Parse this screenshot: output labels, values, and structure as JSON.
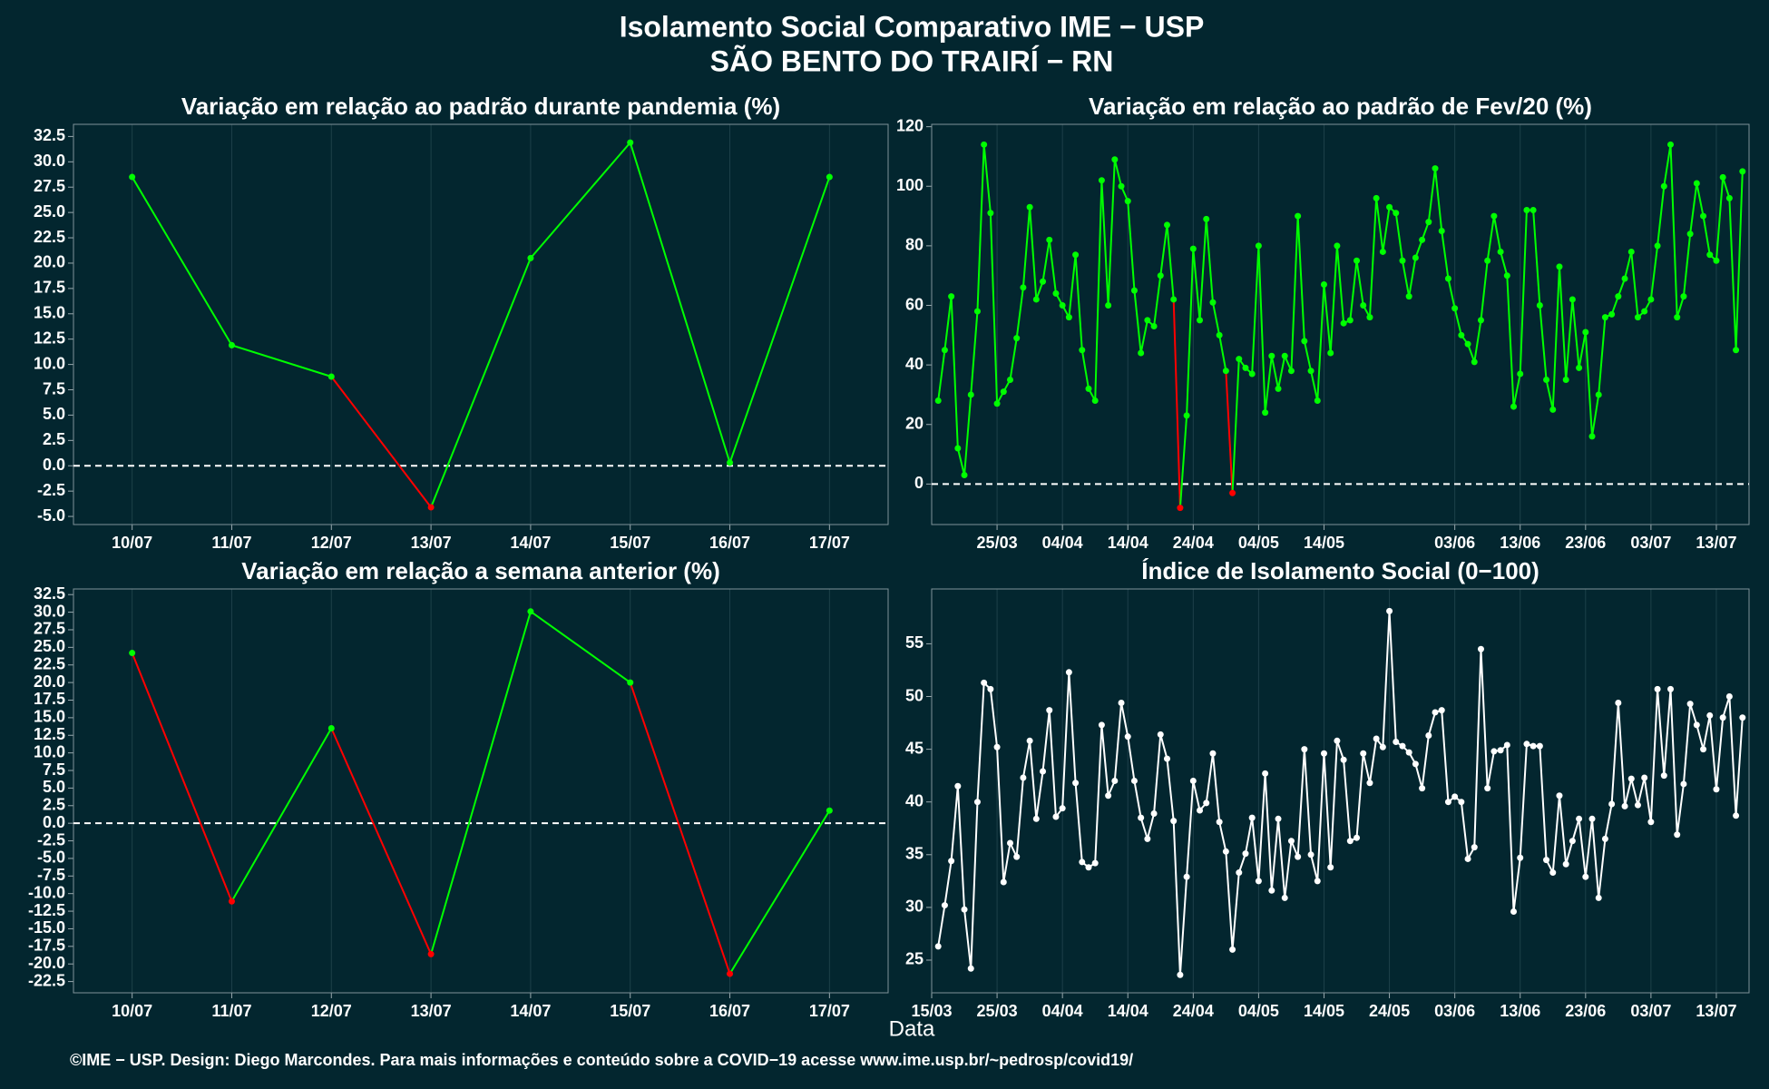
{
  "page": {
    "title": [
      "Isolamento Social Comparativo IME − USP",
      "SÃO BENTO DO TRAIRÍ − RN"
    ],
    "xlabel": "Data",
    "footer": "©IME − USP. Design: Diego Marcondes. Para mais informações e conteúdo sobre a COVID−19 acesse www.ime.usp.br/~pedrosp/covid19/"
  },
  "chart_data": [
    {
      "type": "line",
      "title": "Variação em relação ao padrão durante pandemia (%)",
      "categories": [
        "10/07",
        "11/07",
        "12/07",
        "13/07",
        "14/07",
        "15/07",
        "16/07",
        "17/07"
      ],
      "values": [
        28.5,
        11.9,
        8.8,
        -4.1,
        20.5,
        31.9,
        0.3,
        28.5
      ],
      "positive_color": "#00ff00",
      "negative_color": "#ff0000",
      "hline": 0,
      "ylim": [
        -5.8,
        33.7
      ],
      "yticks": [
        {
          "value": -5,
          "label": "-5.0"
        },
        -2.5,
        {
          "value": 0,
          "label": "0.0"
        },
        2.5,
        {
          "value": 5,
          "label": "5.0"
        },
        7.5,
        {
          "value": 10,
          "label": "10.0"
        },
        12.5,
        {
          "value": 15,
          "label": "15.0"
        },
        17.5,
        {
          "value": 20,
          "label": "20.0"
        },
        22.5,
        {
          "value": 25,
          "label": "25.0"
        },
        27.5,
        {
          "value": 30,
          "label": "30.0"
        },
        32.5
      ]
    },
    {
      "type": "line",
      "title": "Variação em relação ao padrão de Fev/20 (%)",
      "x": [
        "16/03",
        "17/03",
        "18/03",
        "19/03",
        "20/03",
        "21/03",
        "22/03",
        "23/03",
        "24/03",
        "25/03",
        "26/03",
        "27/03",
        "28/03",
        "29/03",
        "30/03",
        "31/03",
        "01/04",
        "02/04",
        "03/04",
        "04/04",
        "05/04",
        "06/04",
        "07/04",
        "08/04",
        "09/04",
        "10/04",
        "11/04",
        "12/04",
        "13/04",
        "14/04",
        "15/04",
        "16/04",
        "17/04",
        "18/04",
        "19/04",
        "20/04",
        "21/04",
        "22/04",
        "23/04",
        "24/04",
        "25/04",
        "26/04",
        "27/04",
        "28/04",
        "29/04",
        "30/04",
        "01/05",
        "02/05",
        "03/05",
        "04/05",
        "05/05",
        "06/05",
        "07/05",
        "08/05",
        "09/05",
        "10/05",
        "11/05",
        "12/05",
        "13/05",
        "14/05",
        "15/05",
        "16/05",
        "17/05",
        "18/05",
        "19/05",
        "20/05",
        "21/05",
        "22/05",
        "23/05",
        "24/05",
        "25/05",
        "26/05",
        "27/05",
        "28/05",
        "29/05",
        "30/05",
        "31/05",
        "01/06",
        "02/06",
        "03/06",
        "04/06",
        "05/06",
        "06/06",
        "07/06",
        "08/06",
        "09/06",
        "10/06",
        "11/06",
        "12/06",
        "13/06",
        "14/06",
        "15/06",
        "16/06",
        "17/06",
        "18/06",
        "19/06",
        "20/06",
        "21/06",
        "22/06",
        "23/06",
        "24/06",
        "25/06",
        "26/06",
        "27/06",
        "28/06",
        "29/06",
        "30/06",
        "01/07",
        "02/07",
        "03/07",
        "04/07",
        "05/07",
        "06/07",
        "07/07",
        "08/07",
        "09/07",
        "10/07",
        "11/07",
        "12/07",
        "13/07",
        "14/07",
        "15/07",
        "16/07",
        "17/07"
      ],
      "values": [
        28,
        45,
        63,
        12,
        3,
        30,
        58,
        114,
        91,
        27,
        31,
        35,
        49,
        66,
        93,
        62,
        68,
        82,
        64,
        60,
        56,
        77,
        45,
        32,
        28,
        102,
        60,
        109,
        100,
        95,
        65,
        44,
        55,
        53,
        70,
        87,
        62,
        -8,
        23,
        79,
        55,
        89,
        61,
        50,
        38,
        -3,
        42,
        39,
        37,
        80,
        24,
        43,
        32,
        43,
        38,
        90,
        48,
        38,
        28,
        67,
        44,
        80,
        54,
        55,
        75,
        60,
        56,
        96,
        78,
        93,
        91,
        75,
        63,
        76,
        82,
        88,
        106,
        85,
        69,
        59,
        50,
        47,
        41,
        55,
        75,
        90,
        78,
        70,
        26,
        37,
        92,
        92,
        60,
        35,
        25,
        73,
        35,
        62,
        39,
        51,
        16,
        30,
        56,
        57,
        63,
        69,
        78,
        56,
        58,
        62,
        80,
        100,
        114,
        56,
        63,
        84,
        101,
        90,
        77,
        75,
        103,
        96,
        45,
        105
      ],
      "positive_color": "#00ff00",
      "negative_color": "#ff0000",
      "hline": 0,
      "xlim": [
        "15/03",
        "18/07"
      ],
      "xticks": [
        "25/03",
        "04/04",
        "14/04",
        "24/04",
        "04/05",
        "14/05",
        "03/06",
        "13/06",
        "23/06",
        "03/07",
        "13/07"
      ],
      "ylim": [
        -13.6,
        120.8
      ],
      "yticks": [
        0,
        20,
        40,
        60,
        80,
        100,
        120
      ]
    },
    {
      "type": "line",
      "title": "Variação em relação a semana anterior (%)",
      "categories": [
        "10/07",
        "11/07",
        "12/07",
        "13/07",
        "14/07",
        "15/07",
        "16/07",
        "17/07"
      ],
      "values": [
        24.2,
        -11.1,
        13.5,
        -18.6,
        30.1,
        20.0,
        -21.4,
        1.8
      ],
      "positive_color": "#00ff00",
      "negative_color": "#ff0000",
      "hline": 0,
      "ylim": [
        -24.1,
        33.3
      ],
      "yticks": [
        -22.5,
        {
          "value": -20,
          "label": "-20.0"
        },
        -17.5,
        {
          "value": -15,
          "label": "-15.0"
        },
        -12.5,
        {
          "value": -10,
          "label": "-10.0"
        },
        -7.5,
        {
          "value": -5,
          "label": "-5.0"
        },
        -2.5,
        {
          "value": 0,
          "label": "0.0"
        },
        2.5,
        {
          "value": 5,
          "label": "5.0"
        },
        7.5,
        {
          "value": 10,
          "label": "10.0"
        },
        12.5,
        {
          "value": 15,
          "label": "15.0"
        },
        17.5,
        {
          "value": 20,
          "label": "20.0"
        },
        22.5,
        {
          "value": 25,
          "label": "25.0"
        },
        27.5,
        {
          "value": 30,
          "label": "30.0"
        },
        32.5
      ]
    },
    {
      "type": "line",
      "title": "Índice de Isolamento Social (0−100)",
      "x": [
        "16/03",
        "17/03",
        "18/03",
        "19/03",
        "20/03",
        "21/03",
        "22/03",
        "23/03",
        "24/03",
        "25/03",
        "26/03",
        "27/03",
        "28/03",
        "29/03",
        "30/03",
        "31/03",
        "01/04",
        "02/04",
        "03/04",
        "04/04",
        "05/04",
        "06/04",
        "07/04",
        "08/04",
        "09/04",
        "10/04",
        "11/04",
        "12/04",
        "13/04",
        "14/04",
        "15/04",
        "16/04",
        "17/04",
        "18/04",
        "19/04",
        "20/04",
        "21/04",
        "22/04",
        "23/04",
        "24/04",
        "25/04",
        "26/04",
        "27/04",
        "28/04",
        "29/04",
        "30/04",
        "01/05",
        "02/05",
        "03/05",
        "04/05",
        "05/05",
        "06/05",
        "07/05",
        "08/05",
        "09/05",
        "10/05",
        "11/05",
        "12/05",
        "13/05",
        "14/05",
        "15/05",
        "16/05",
        "17/05",
        "18/05",
        "19/05",
        "20/05",
        "21/05",
        "22/05",
        "23/05",
        "24/05",
        "25/05",
        "26/05",
        "27/05",
        "28/05",
        "29/05",
        "30/05",
        "31/05",
        "01/06",
        "02/06",
        "03/06",
        "04/06",
        "05/06",
        "06/06",
        "07/06",
        "08/06",
        "09/06",
        "10/06",
        "11/06",
        "12/06",
        "13/06",
        "14/06",
        "15/06",
        "16/06",
        "17/06",
        "18/06",
        "19/06",
        "20/06",
        "21/06",
        "22/06",
        "23/06",
        "24/06",
        "25/06",
        "26/06",
        "27/06",
        "28/06",
        "29/06",
        "30/06",
        "01/07",
        "02/07",
        "03/07",
        "04/07",
        "05/07",
        "06/07",
        "07/07",
        "08/07",
        "09/07",
        "10/07",
        "11/07",
        "12/07",
        "13/07",
        "14/07",
        "15/07",
        "16/07",
        "17/07"
      ],
      "values": [
        26.3,
        30.2,
        34.4,
        41.5,
        29.8,
        24.2,
        40.0,
        51.3,
        50.7,
        45.2,
        32.4,
        36.1,
        34.8,
        42.3,
        45.8,
        38.4,
        42.9,
        48.7,
        38.6,
        39.4,
        52.3,
        41.8,
        34.3,
        33.8,
        34.2,
        47.3,
        40.6,
        42.0,
        49.4,
        46.2,
        42.0,
        38.5,
        36.5,
        38.9,
        46.4,
        44.1,
        38.2,
        23.6,
        32.9,
        42.0,
        39.2,
        39.9,
        44.6,
        38.1,
        35.3,
        26.0,
        33.3,
        35.1,
        38.5,
        32.5,
        42.7,
        31.6,
        38.4,
        30.9,
        36.3,
        34.8,
        45.0,
        35.0,
        32.5,
        44.6,
        33.8,
        45.8,
        44.0,
        36.3,
        36.6,
        44.6,
        41.8,
        46.0,
        45.2,
        58.1,
        45.7,
        45.3,
        44.7,
        43.6,
        41.3,
        46.3,
        48.5,
        48.7,
        40.0,
        40.5,
        40.0,
        34.6,
        35.7,
        54.5,
        41.3,
        44.8,
        44.9,
        45.4,
        29.6,
        34.7,
        45.5,
        45.3,
        45.3,
        34.5,
        33.3,
        40.6,
        34.1,
        36.3,
        38.4,
        32.9,
        38.4,
        30.9,
        36.5,
        39.8,
        49.4,
        39.6,
        42.2,
        39.7,
        42.3,
        38.1,
        50.7,
        42.5,
        50.7,
        36.9,
        41.7,
        49.3,
        47.3,
        45.0,
        48.2,
        41.2,
        48.0,
        50.0,
        38.7,
        48.0
      ],
      "color": "#ffffff",
      "xlim": [
        "15/03",
        "18/07"
      ],
      "xticks": [
        "15/03",
        "25/03",
        "04/04",
        "14/04",
        "24/04",
        "04/05",
        "14/05",
        "24/05",
        "03/06",
        "13/06",
        "23/06",
        "03/07",
        "13/07"
      ],
      "ylim": [
        21.9,
        60.2
      ],
      "yticks": [
        25,
        30,
        35,
        40,
        45,
        50,
        55
      ]
    }
  ]
}
